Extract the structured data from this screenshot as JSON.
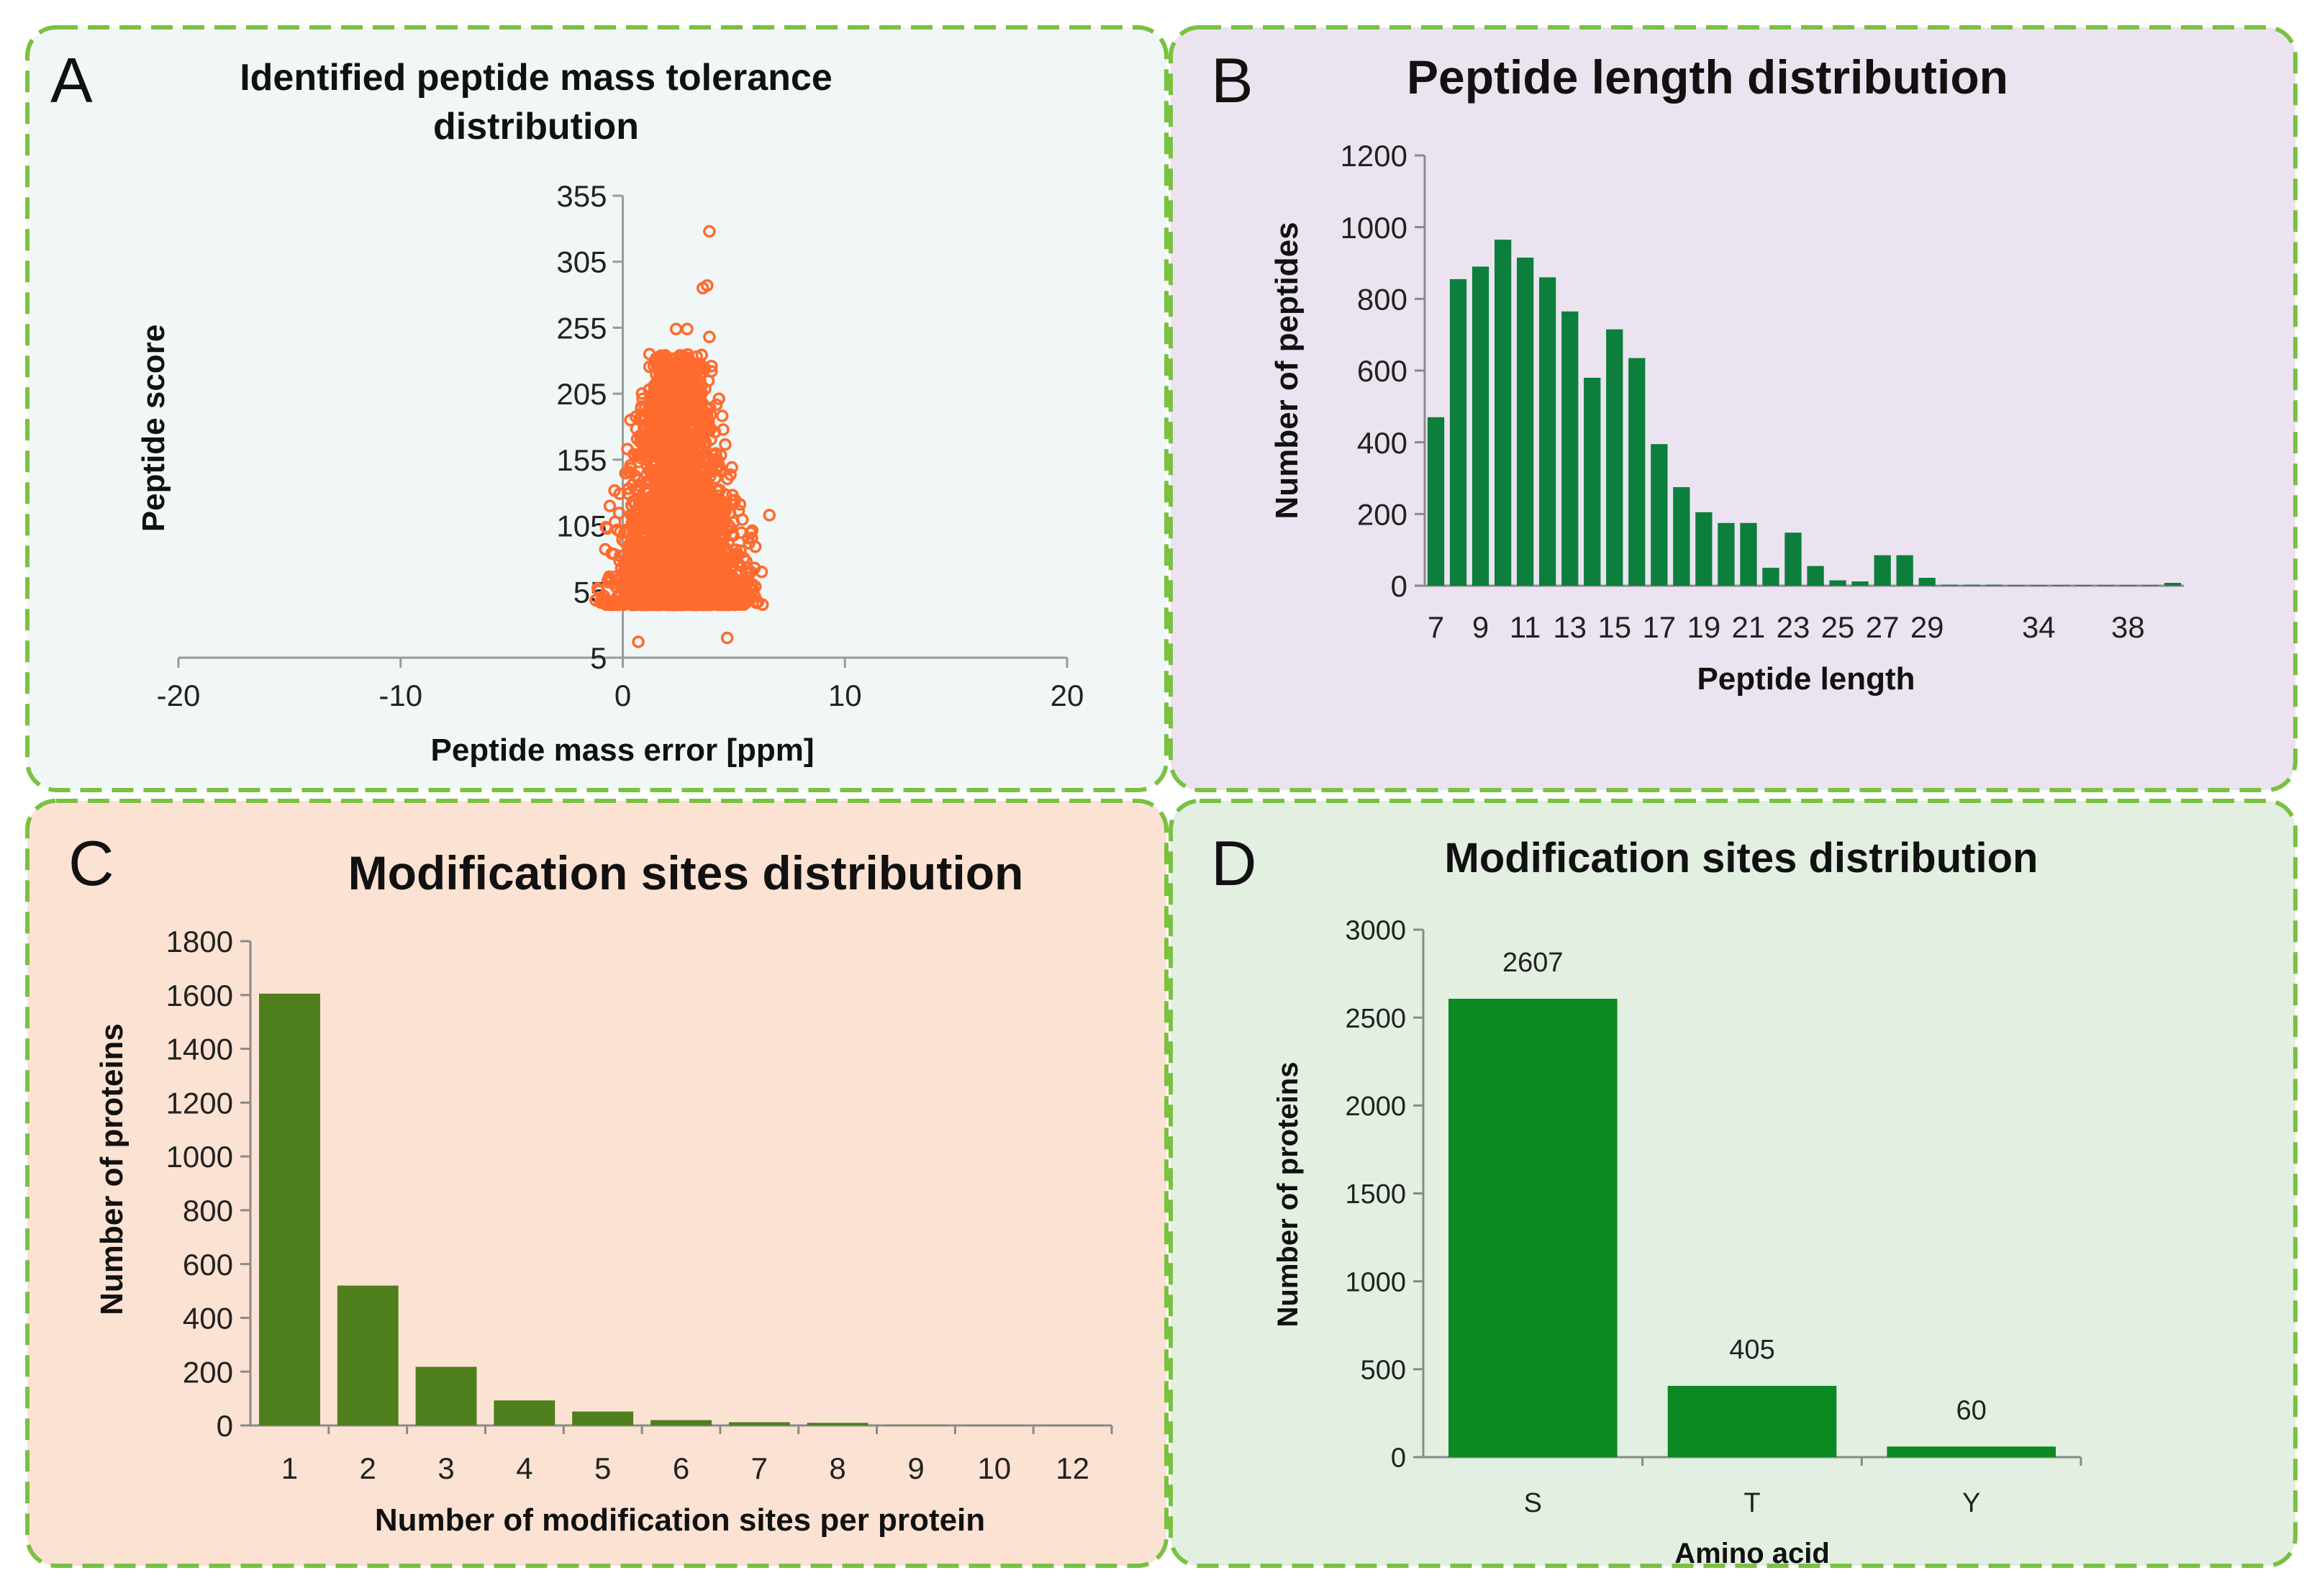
{
  "colors": {
    "border": "#7ac142",
    "panel_a_bg": "#f1f7f6",
    "panel_b_bg": "#ebe4f0",
    "panel_c_bg": "#fce2d2",
    "panel_d_bg": "#e2efe1",
    "scatter": "#ff6a2e",
    "bar_b": "#0c7f3c",
    "bar_c": "#4f7f1c",
    "bar_d": "#0b8a24"
  },
  "panels": {
    "a": {
      "letter": "A"
    },
    "b": {
      "letter": "B"
    },
    "c": {
      "letter": "C"
    },
    "d": {
      "letter": "D"
    }
  },
  "chart_data": [
    {
      "panel": "A",
      "type": "scatter",
      "title_line1": "Identified peptide mass tolerance",
      "title_line2": "distribution",
      "xlabel": "Peptide mass error [ppm]",
      "ylabel": "Peptide score",
      "xlim": [
        -20,
        20
      ],
      "ylim": [
        5,
        355
      ],
      "xticks": [
        "-20",
        "-10",
        "0",
        "10",
        "20"
      ],
      "yticks": [
        "5",
        "55",
        "105",
        "155",
        "205",
        "255",
        "305",
        "355"
      ],
      "cluster": {
        "x_center": 2.5,
        "x_min": -2,
        "x_max": 6.5,
        "y_min": 35,
        "y_mode": 55,
        "y_max": 255,
        "approx_points": 5000
      },
      "outliers": [
        {
          "x": 3.9,
          "y": 328
        },
        {
          "x": 3.6,
          "y": 285
        },
        {
          "x": 3.8,
          "y": 287
        },
        {
          "x": 2.4,
          "y": 254
        },
        {
          "x": 2.9,
          "y": 254
        },
        {
          "x": 3.9,
          "y": 248
        },
        {
          "x": 1.2,
          "y": 235
        },
        {
          "x": 1.6,
          "y": 215
        },
        {
          "x": 6.6,
          "y": 113
        },
        {
          "x": 0.7,
          "y": 17
        },
        {
          "x": 4.7,
          "y": 20
        }
      ]
    },
    {
      "panel": "B",
      "type": "bar",
      "title": "Peptide length distribution",
      "xlabel": "Peptide length",
      "ylabel": "Number of peptides",
      "ylim": [
        0,
        1200
      ],
      "yticks": [
        "0",
        "200",
        "400",
        "600",
        "800",
        "1000",
        "1200"
      ],
      "categories": [
        "7",
        "8",
        "9",
        "10",
        "11",
        "12",
        "13",
        "14",
        "15",
        "16",
        "17",
        "18",
        "19",
        "20",
        "21",
        "22",
        "23",
        "24",
        "25",
        "26",
        "27",
        "28",
        "29",
        "30",
        "31",
        "32",
        "33",
        "34",
        "35",
        "36",
        "37",
        "38",
        "39",
        "40"
      ],
      "values": [
        470,
        855,
        890,
        965,
        915,
        860,
        765,
        580,
        715,
        635,
        395,
        275,
        205,
        175,
        175,
        50,
        148,
        55,
        15,
        12,
        85,
        85,
        22,
        3,
        3,
        3,
        2,
        2,
        2,
        2,
        2,
        2,
        2,
        8
      ],
      "xtick_labels": [
        "7",
        "9",
        "11",
        "13",
        "15",
        "17",
        "19",
        "21",
        "23",
        "25",
        "27",
        "29",
        "34",
        "38"
      ]
    },
    {
      "panel": "C",
      "type": "bar",
      "title": "Modification sites distribution",
      "xlabel": "Number of modification sites per protein",
      "ylabel": "Number of proteins",
      "ylim": [
        0,
        1800
      ],
      "yticks": [
        "0",
        "200",
        "400",
        "600",
        "800",
        "1000",
        "1200",
        "1400",
        "1600",
        "1800"
      ],
      "categories": [
        "1",
        "2",
        "3",
        "4",
        "5",
        "6",
        "7",
        "8",
        "9",
        "10",
        "12"
      ],
      "values": [
        1605,
        520,
        218,
        93,
        52,
        20,
        12,
        10,
        2,
        1,
        1
      ]
    },
    {
      "panel": "D",
      "type": "bar",
      "title": "Modification sites distribution",
      "xlabel": "Amino acid",
      "ylabel": "Number of proteins",
      "ylim": [
        0,
        3000
      ],
      "yticks": [
        "0",
        "500",
        "1000",
        "1500",
        "2000",
        "2500",
        "3000"
      ],
      "categories": [
        "S",
        "T",
        "Y"
      ],
      "values": [
        2607,
        405,
        60
      ],
      "data_labels": [
        "2607",
        "405",
        "60"
      ]
    }
  ]
}
